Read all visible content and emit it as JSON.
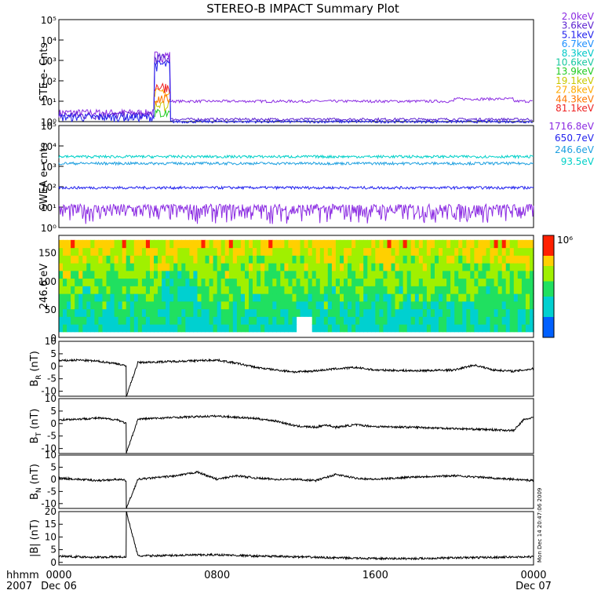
{
  "chart_data": [
    {
      "type": "line",
      "title": "STEREO-B IMPACT Summary Plot",
      "ylabel": "STE e- Cnts",
      "ylog": true,
      "ylim_exp": [
        0,
        5
      ],
      "yticks": [
        "10⁰",
        "10¹",
        "10²",
        "10³",
        "10⁴",
        "10⁵"
      ],
      "series": [
        {
          "name": "2.0keV",
          "color": "#8b2be2",
          "base": 10,
          "pre": 2,
          "spike": 2000
        },
        {
          "name": "3.6keV",
          "color": "#5a1fd0",
          "base": 1.3,
          "pre": 1.5,
          "spike": 1500
        },
        {
          "name": "5.1keV",
          "color": "#2222ee",
          "base": 1,
          "pre": 1.2,
          "spike": 700
        },
        {
          "name": "6.7keV",
          "color": "#1e90ff",
          "base": null,
          "pre": null,
          "spike": null
        },
        {
          "name": "8.3keV",
          "color": "#00c8c8",
          "base": null,
          "pre": null,
          "spike": null
        },
        {
          "name": "10.6keV",
          "color": "#18c8a0",
          "base": null,
          "pre": null,
          "spike": null
        },
        {
          "name": "13.9keV",
          "color": "#22cc22",
          "base": null,
          "pre": null,
          "spike": 3
        },
        {
          "name": "19.1keV",
          "color": "#c8c800",
          "base": null,
          "pre": null,
          "spike": 8
        },
        {
          "name": "27.8keV",
          "color": "#ffaa00",
          "base": null,
          "pre": null,
          "spike": 30
        },
        {
          "name": "44.3keV",
          "color": "#ff7700",
          "base": null,
          "pre": null,
          "spike": 15
        },
        {
          "name": "81.1keV",
          "color": "#ee2222",
          "base": null,
          "pre": null,
          "spike": 60
        }
      ]
    },
    {
      "type": "line",
      "ylabel": "SWEA e- cnts",
      "ylog": true,
      "ylim_exp": [
        0,
        5
      ],
      "yticks": [
        "10⁰",
        "10¹",
        "10²",
        "10³",
        "10⁴",
        "10⁵"
      ],
      "series": [
        {
          "name": "1716.8eV",
          "color": "#8b2be2",
          "level": 5
        },
        {
          "name": "650.7eV",
          "color": "#2222ee",
          "level": 90
        },
        {
          "name": "246.6eV",
          "color": "#1ea0e0",
          "level": 1400
        },
        {
          "name": "93.5eV",
          "color": "#00d0c8",
          "level": 3000
        }
      ]
    },
    {
      "type": "heatmap",
      "ylabel": "246.6 eV",
      "ylim": [
        0,
        180
      ],
      "yticks": [
        "0",
        "50",
        "100",
        "150"
      ],
      "colorbar_label": "10⁶"
    },
    {
      "type": "line",
      "ylabel": "B",
      "ylabel_sub": "R",
      "ylabel_unit": "(nT)",
      "ylim": [
        -12,
        10
      ],
      "yticks": [
        "-10",
        "-5",
        "0",
        "5",
        "10"
      ],
      "x": [
        0,
        1,
        2,
        3,
        3.4,
        3.41,
        4,
        6,
        8,
        9,
        10,
        11,
        12,
        13,
        14,
        15,
        16,
        18,
        20,
        21,
        22,
        23,
        24
      ],
      "y": [
        2.2,
        2.5,
        2,
        1,
        0,
        -12,
        1.5,
        2,
        2.5,
        1.2,
        -0.5,
        -1.5,
        -2.3,
        -1.8,
        -1,
        -0.5,
        -1.5,
        -1.8,
        -1.5,
        0.5,
        -1.5,
        -2,
        -1
      ]
    },
    {
      "type": "line",
      "ylabel": "B",
      "ylabel_sub": "T",
      "ylabel_unit": "(nT)",
      "ylim": [
        -12,
        10
      ],
      "yticks": [
        "-10",
        "-5",
        "0",
        "5",
        "10"
      ],
      "x": [
        0,
        1,
        2,
        3,
        3.4,
        3.41,
        4,
        6,
        8,
        10,
        11,
        12,
        13,
        13.5,
        14,
        15,
        16,
        18,
        20,
        22,
        23,
        23.5,
        24
      ],
      "y": [
        1.5,
        1.8,
        2.2,
        1.5,
        0,
        -12,
        1.8,
        2.5,
        3,
        2,
        1,
        -1,
        -1.5,
        -0.5,
        -1.5,
        -0.5,
        -1.2,
        -1.5,
        -2,
        -2.5,
        -2.8,
        1.5,
        2.5
      ]
    },
    {
      "type": "line",
      "ylabel": "B",
      "ylabel_sub": "N",
      "ylabel_unit": "(nT)",
      "ylim": [
        -12,
        10
      ],
      "yticks": [
        "-10",
        "-5",
        "0",
        "5",
        "10"
      ],
      "x": [
        0,
        1,
        2,
        3,
        3.4,
        3.41,
        4,
        6,
        7,
        8,
        9,
        10,
        11,
        12,
        13,
        14,
        15,
        16,
        18,
        20,
        22,
        24
      ],
      "y": [
        0.5,
        0,
        -0.5,
        0,
        -0.5,
        -12,
        0,
        1.5,
        3,
        0,
        1.5,
        0.5,
        0,
        0,
        -0.5,
        2,
        0.5,
        0,
        1,
        1.5,
        0.5,
        -0.5
      ]
    },
    {
      "type": "line",
      "ylabel": "|B|",
      "ylabel_unit": "(nT)",
      "ylim": [
        -1,
        20
      ],
      "yticks": [
        "0",
        "5",
        "10",
        "15",
        "20"
      ],
      "x": [
        0,
        1,
        2,
        3,
        3.4,
        3.41,
        4,
        6,
        8,
        10,
        12,
        14,
        16,
        18,
        20,
        22,
        24
      ],
      "y": [
        2.5,
        2.2,
        2,
        2.2,
        2,
        20,
        2.5,
        2.8,
        3,
        2.5,
        2.2,
        1.8,
        1.5,
        1.5,
        1.8,
        2,
        2.2
      ]
    }
  ],
  "xaxis": {
    "row_label": "hhmm",
    "year_label": "2007",
    "ticks": [
      {
        "label": "0000",
        "sub": "Dec 06"
      },
      {
        "label": "0800",
        "sub": ""
      },
      {
        "label": "1600",
        "sub": ""
      },
      {
        "label": "0000",
        "sub": "Dec 07"
      }
    ],
    "range_hours": [
      0,
      24
    ]
  },
  "footnote": "Mon Dec 14 20:47:06 2009",
  "colors": {
    "frame": "#000000",
    "background": "#ffffff",
    "trace": "#000000"
  }
}
